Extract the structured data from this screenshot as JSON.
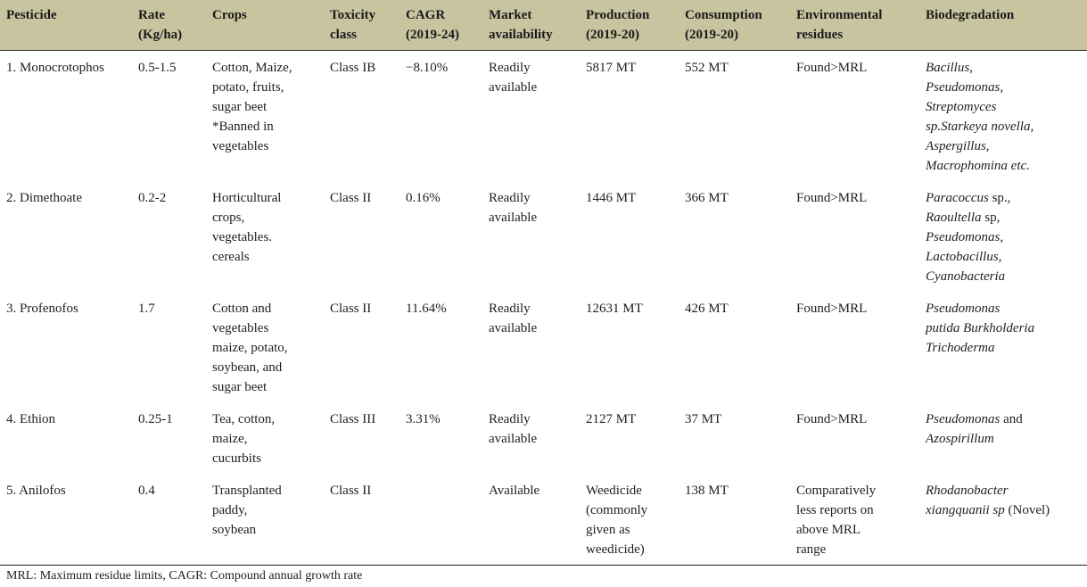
{
  "table": {
    "columns": [
      {
        "id": "pesticide",
        "label": "Pesticide"
      },
      {
        "id": "rate",
        "label": "Rate\n(Kg/ha)"
      },
      {
        "id": "crops",
        "label": "Crops"
      },
      {
        "id": "toxicity",
        "label": "Toxicity\nclass"
      },
      {
        "id": "cagr",
        "label": "CAGR\n(2019-24)"
      },
      {
        "id": "market",
        "label": "Market\navailability"
      },
      {
        "id": "production",
        "label": "Production\n(2019-20)"
      },
      {
        "id": "consumption",
        "label": "Consumption\n(2019-20)"
      },
      {
        "id": "environmental",
        "label": "Environmental\nresidues"
      },
      {
        "id": "biodegradation",
        "label": "Biodegradation"
      }
    ],
    "rows": [
      {
        "cells": [
          "1. Monocrotophos",
          "0.5-1.5",
          "Cotton, Maize,\npotato, fruits,\nsugar beet\n*Banned in\nvegetables",
          "Class IB",
          "−8.10%",
          "Readily\navailable",
          "5817 MT",
          "552 MT",
          "Found>MRL",
          [
            {
              "text": "Bacillus,\nPseudomonas,\nStreptomyces\nsp.Starkeya novella,\nAspergillus,\nMacrophomina etc.",
              "italic": true
            }
          ]
        ]
      },
      {
        "cells": [
          "2. Dimethoate",
          "0.2-2",
          "Horticultural\ncrops,\nvegetables.\ncereals",
          "Class II",
          "0.16%",
          "Readily\navailable",
          "1446 MT",
          "366 MT",
          "Found>MRL",
          [
            {
              "text": "Paracoccus",
              "italic": true
            },
            {
              "text": " sp.,\n",
              "italic": false
            },
            {
              "text": "Raoultella",
              "italic": true
            },
            {
              "text": " sp,\n",
              "italic": false
            },
            {
              "text": "Pseudomonas,\nLactobacillus,\nCyanobacteria",
              "italic": true
            }
          ]
        ]
      },
      {
        "cells": [
          "3. Profenofos",
          "1.7",
          "Cotton and\nvegetables\nmaize, potato,\nsoybean, and\nsugar beet",
          "Class II",
          "11.64%",
          "Readily\navailable",
          "12631 MT",
          "426 MT",
          "Found>MRL",
          [
            {
              "text": "Pseudomonas\nputida Burkholderia\nTrichoderma",
              "italic": true
            }
          ]
        ]
      },
      {
        "cells": [
          "4. Ethion",
          "0.25-1",
          "Tea, cotton,\nmaize,\ncucurbits",
          "Class III",
          "3.31%",
          "Readily\navailable",
          "2127 MT",
          "37 MT",
          "Found>MRL",
          [
            {
              "text": "Pseudomonas",
              "italic": true
            },
            {
              "text": " and\n",
              "italic": false
            },
            {
              "text": "Azospirillum",
              "italic": true
            }
          ]
        ]
      },
      {
        "cells": [
          "5. Anilofos",
          "0.4",
          "Transplanted\npaddy,\nsoybean",
          "Class II",
          "",
          "Available",
          "Weedicide\n(commonly\ngiven as\nweedicide)",
          "138 MT",
          "Comparatively\nless reports on\nabove MRL\nrange",
          [
            {
              "text": "Rhodanobacter\nxiangquanii sp",
              "italic": true
            },
            {
              "text": " (Novel)",
              "italic": false
            }
          ]
        ]
      }
    ]
  },
  "footnote": "MRL: Maximum residue limits, CAGR: Compound annual growth rate",
  "colors": {
    "header_bg": "#c8c4a0",
    "text": "#1f1f1f",
    "rule": "#1f1f1f"
  }
}
